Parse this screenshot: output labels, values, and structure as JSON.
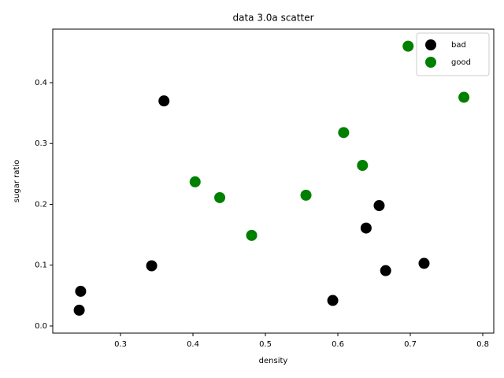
{
  "chart_data": {
    "type": "scatter",
    "title": "data 3.0a scatter",
    "x_label": "density",
    "y_label": "sugar ratio",
    "xlim": [
      0.2065,
      0.8152
    ],
    "ylim": [
      -0.0117,
      0.488
    ],
    "xticks": [
      0.3,
      0.4,
      0.5,
      0.6,
      0.7,
      0.8
    ],
    "yticks": [
      {
        "value": 0,
        "label": "0.0"
      },
      0.1,
      0.2,
      0.3,
      0.4
    ],
    "legend": "upper right",
    "series": [
      {
        "name": "bad",
        "color": "#000000",
        "x": [
          0.666,
          0.243,
          0.245,
          0.343,
          0.639,
          0.657,
          0.36,
          0.593,
          0.719
        ],
        "values": [
          0.091,
          0.026,
          0.057,
          0.099,
          0.161,
          0.198,
          0.37,
          0.042,
          0.103
        ]
      },
      {
        "name": "good",
        "color": "#008000",
        "x": [
          0.697,
          0.774,
          0.634,
          0.608,
          0.556,
          0.403,
          0.481,
          0.437
        ],
        "values": [
          0.46,
          0.376,
          0.264,
          0.318,
          0.215,
          0.237,
          0.149,
          0.211
        ]
      }
    ]
  }
}
